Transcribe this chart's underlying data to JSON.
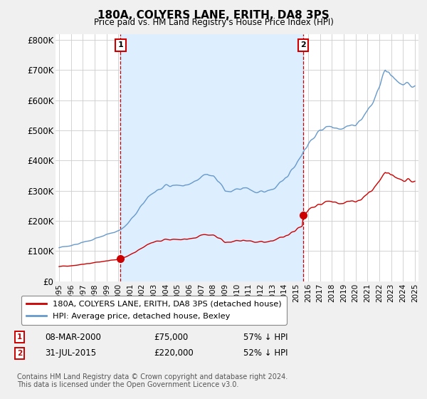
{
  "title": "180A, COLYERS LANE, ERITH, DA8 3PS",
  "subtitle": "Price paid vs. HM Land Registry's House Price Index (HPI)",
  "legend_label_red": "180A, COLYERS LANE, ERITH, DA8 3PS (detached house)",
  "legend_label_blue": "HPI: Average price, detached house, Bexley",
  "annotation1_date": "08-MAR-2000",
  "annotation1_price": "£75,000",
  "annotation1_hpi": "57% ↓ HPI",
  "annotation1_year": 2000.18,
  "annotation1_value": 75000,
  "annotation2_date": "31-JUL-2015",
  "annotation2_price": "£220,000",
  "annotation2_hpi": "52% ↓ HPI",
  "annotation2_year": 2015.58,
  "annotation2_value": 220000,
  "footer": "Contains HM Land Registry data © Crown copyright and database right 2024.\nThis data is licensed under the Open Government Licence v3.0.",
  "ylim": [
    0,
    820000
  ],
  "yticks": [
    0,
    100000,
    200000,
    300000,
    400000,
    500000,
    600000,
    700000,
    800000
  ],
  "ytick_labels": [
    "£0",
    "£100K",
    "£200K",
    "£300K",
    "£400K",
    "£500K",
    "£600K",
    "£700K",
    "£800K"
  ],
  "red_color": "#cc0000",
  "blue_color": "#6699cc",
  "shade_color": "#ddeeff",
  "bg_color": "#f0f0f0",
  "plot_bg_color": "#ffffff",
  "grid_color": "#cccccc",
  "dot_color": "#cc0000"
}
